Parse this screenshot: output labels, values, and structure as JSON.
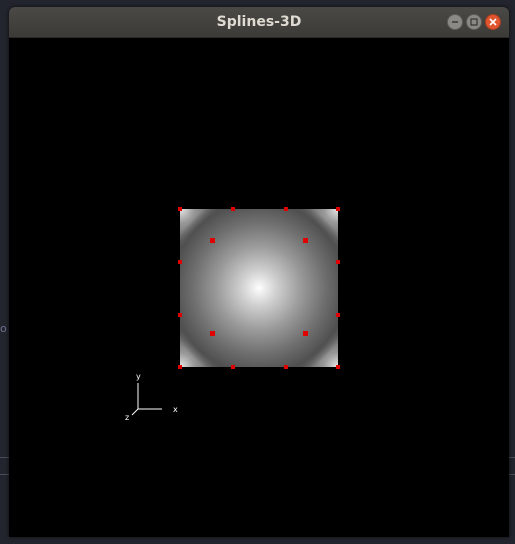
{
  "window": {
    "title": "Splines-3D"
  },
  "background": {
    "edge_glyph": "o"
  },
  "axes": {
    "x_label": "x",
    "y_label": "y",
    "z_label": "z"
  },
  "controls": {
    "minimize_icon": "minimize-icon",
    "maximize_icon": "maximize-icon",
    "close_icon": "close-icon"
  },
  "colors": {
    "control_point": "#e00000",
    "close_button": "#e0552d",
    "titlebar": "#3c3b37"
  }
}
